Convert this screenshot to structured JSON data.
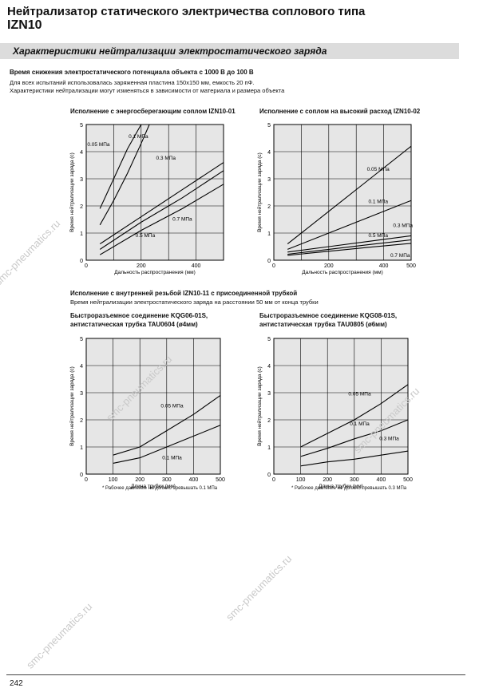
{
  "header": {
    "title_line1": "Нейтрализатор статического электричества соплового типа",
    "title_line2": "IZN10"
  },
  "section_band": "Характеристики нейтрализации электростатического заряда",
  "subheading": "Время снижения электростатического потенциала объекта с 1000 В до 100 В",
  "notes": [
    "Для всех испытаний использовалась заряженная пластина 150х150 мм, емкость 20 пФ.",
    "Характеристики нейтрализации могут изменяться в зависимости от материала и размера объекта"
  ],
  "second_section": {
    "heading": "Исполнение с внутренней резьбой IZN10-11 с присоединенной трубкой",
    "subheading": "Время нейтрализации электростатического заряда на расстоянии 50 мм от конца трубки"
  },
  "watermark_text": "smc-pneumatics.ru",
  "page_number": "242",
  "chart_data": [
    {
      "type": "line",
      "title": "Исполнение с энергосберегающим соплом IZN10-01",
      "xlabel": "Дальность распространения (мм)",
      "ylabel": "Время нейтрализации заряда (с)",
      "xlim": [
        0,
        500
      ],
      "ylim": [
        0,
        5
      ],
      "x_ticks": [
        "0",
        "200",
        "400"
      ],
      "y_ticks": [
        "0",
        "1",
        "2",
        "3",
        "4",
        "5"
      ],
      "grid": true,
      "footnote": "",
      "series": [
        {
          "name": "0.05 МПа",
          "x": [
            50,
            100,
            150,
            200
          ],
          "y": [
            1.9,
            3.0,
            4.1,
            5.0
          ]
        },
        {
          "name": "0.1 МПа",
          "x": [
            50,
            100,
            150,
            200,
            230
          ],
          "y": [
            1.3,
            2.2,
            3.2,
            4.3,
            5.0
          ]
        },
        {
          "name": "0.3 МПа",
          "x": [
            50,
            200,
            350,
            500
          ],
          "y": [
            0.6,
            1.6,
            2.6,
            3.6
          ]
        },
        {
          "name": "0.7 МПа",
          "x": [
            50,
            200,
            350,
            500
          ],
          "y": [
            0.4,
            1.4,
            2.3,
            3.3
          ]
        },
        {
          "name": "0.5 МПа",
          "x": [
            50,
            200,
            350,
            500
          ],
          "y": [
            0.2,
            1.1,
            1.9,
            2.8
          ]
        }
      ],
      "labels": [
        {
          "text": "0.05 МПа",
          "x": 45,
          "y": 4.2
        },
        {
          "text": "0.1 МПа",
          "x": 190,
          "y": 4.5
        },
        {
          "text": "0.3 МПа",
          "x": 290,
          "y": 3.7
        },
        {
          "text": "0.7 МПа",
          "x": 350,
          "y": 1.45
        },
        {
          "text": "0.5 МПа",
          "x": 215,
          "y": 0.85
        }
      ]
    },
    {
      "type": "line",
      "title": "Исполнение с соплом на высокий расход IZN10-02",
      "xlabel": "Дальность распространения (мм)",
      "ylabel": "Время нейтрализации заряда (с)",
      "xlim": [
        0,
        500
      ],
      "ylim": [
        0,
        5
      ],
      "x_ticks": [
        "0",
        "200",
        "400",
        "500"
      ],
      "y_ticks": [
        "0",
        "1",
        "2",
        "3",
        "4",
        "5"
      ],
      "grid": true,
      "footnote": "",
      "series": [
        {
          "name": "0.05 МПа",
          "x": [
            50,
            200,
            350,
            500
          ],
          "y": [
            0.6,
            1.8,
            3.0,
            4.2
          ]
        },
        {
          "name": "0.1 МПа",
          "x": [
            50,
            200,
            350,
            500
          ],
          "y": [
            0.4,
            1.0,
            1.6,
            2.2
          ]
        },
        {
          "name": "0.3 МПа",
          "x": [
            50,
            200,
            350,
            500
          ],
          "y": [
            0.3,
            0.5,
            0.7,
            0.9
          ]
        },
        {
          "name": "0.5 МПа",
          "x": [
            50,
            200,
            350,
            500
          ],
          "y": [
            0.22,
            0.4,
            0.58,
            0.75
          ]
        },
        {
          "name": "0.7 МПа",
          "x": [
            50,
            200,
            350,
            500
          ],
          "y": [
            0.18,
            0.33,
            0.48,
            0.62
          ]
        }
      ],
      "labels": [
        {
          "text": "0.05 МПа",
          "x": 380,
          "y": 3.3
        },
        {
          "text": "0.1 МПа",
          "x": 380,
          "y": 2.1
        },
        {
          "text": "0.3 МПа",
          "x": 470,
          "y": 1.22
        },
        {
          "text": "0.5 МПа",
          "x": 380,
          "y": 0.85
        },
        {
          "text": "0.7 МПа",
          "x": 460,
          "y": 0.12
        }
      ]
    },
    {
      "type": "line",
      "title": "Быстроразъемное соединение KQG06-01S, антистатическая трубка TAU0604 (ø4мм)",
      "xlabel": "Длина трубки (мм)",
      "ylabel": "Время нейтрализации заряда (с)",
      "xlim": [
        0,
        500
      ],
      "ylim": [
        0,
        5
      ],
      "x_ticks": [
        "0",
        "100",
        "200",
        "300",
        "400",
        "500"
      ],
      "y_ticks": [
        "0",
        "1",
        "2",
        "3",
        "4",
        "5"
      ],
      "grid": true,
      "footnote": "* Рабочее давление не должно превышать 0.1 МПа",
      "series": [
        {
          "name": "0.05 МПа",
          "x": [
            100,
            200,
            300,
            400,
            500
          ],
          "y": [
            0.7,
            1.0,
            1.6,
            2.2,
            2.9
          ]
        },
        {
          "name": "0.1 МПа",
          "x": [
            100,
            200,
            300,
            400,
            500
          ],
          "y": [
            0.4,
            0.6,
            1.0,
            1.4,
            1.8
          ]
        }
      ],
      "labels": [
        {
          "text": "0.05 МПа",
          "x": 320,
          "y": 2.45
        },
        {
          "text": "0.1 МПа",
          "x": 320,
          "y": 0.55
        }
      ]
    },
    {
      "type": "line",
      "title": "Быстроразъемное соединение KQG08-01S, антистатическая трубка TAU0805 (ø6мм)",
      "xlabel": "Длина трубки (мм)",
      "ylabel": "Время нейтрализации заряда (с)",
      "xlim": [
        0,
        500
      ],
      "ylim": [
        0,
        5
      ],
      "x_ticks": [
        "0",
        "100",
        "200",
        "300",
        "400",
        "500"
      ],
      "y_ticks": [
        "0",
        "1",
        "2",
        "3",
        "4",
        "5"
      ],
      "grid": true,
      "footnote": "* Рабочее давление не должно превышать 0.3 МПа",
      "series": [
        {
          "name": "0.05 МПа",
          "x": [
            100,
            200,
            300,
            400,
            500
          ],
          "y": [
            1.0,
            1.5,
            2.0,
            2.6,
            3.3
          ]
        },
        {
          "name": "0.1 МПа",
          "x": [
            100,
            200,
            300,
            400,
            500
          ],
          "y": [
            0.65,
            0.95,
            1.3,
            1.6,
            2.0
          ]
        },
        {
          "name": "0.3 МПа",
          "x": [
            100,
            200,
            300,
            400,
            500
          ],
          "y": [
            0.3,
            0.45,
            0.55,
            0.7,
            0.85
          ]
        }
      ],
      "labels": [
        {
          "text": "0.05 МПа",
          "x": 320,
          "y": 2.9
        },
        {
          "text": "0.1 МПа",
          "x": 320,
          "y": 1.8
        },
        {
          "text": "0.3 МПа",
          "x": 430,
          "y": 1.25
        }
      ]
    }
  ]
}
